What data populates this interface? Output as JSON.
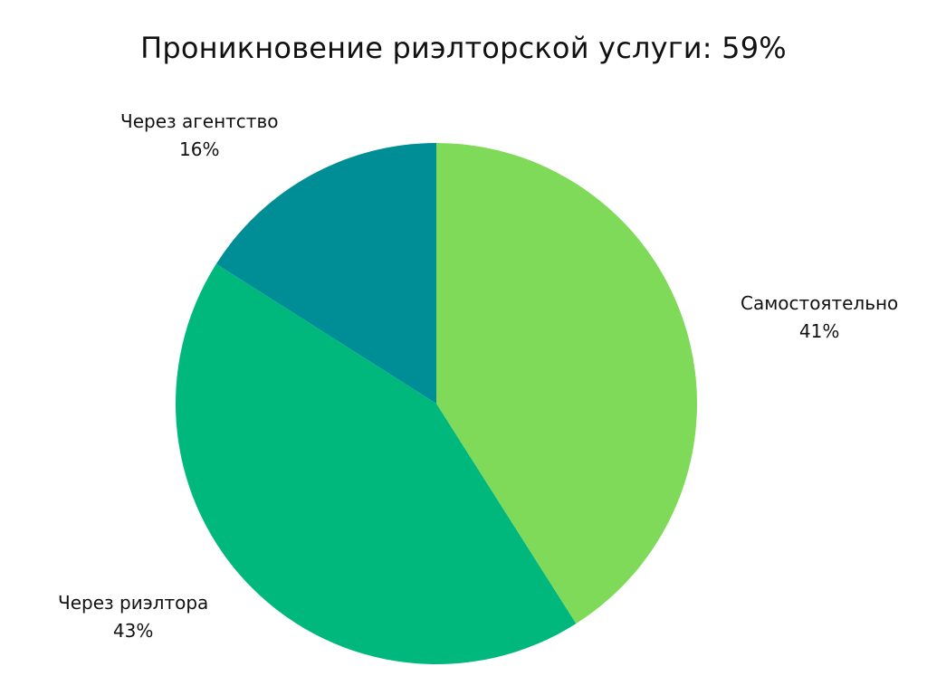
{
  "chart_data": {
    "type": "pie",
    "title": "Проникновение риэлторской услуги: 59%",
    "slices": [
      {
        "label": "Самостоятельно",
        "value": 41,
        "value_label": "41%",
        "color": "#80DA5A"
      },
      {
        "label": "Через риэлтора",
        "value": 43,
        "value_label": "43%",
        "color": "#00B87C"
      },
      {
        "label": "Через агентство",
        "value": 16,
        "value_label": "16%",
        "color": "#008E96"
      }
    ]
  }
}
